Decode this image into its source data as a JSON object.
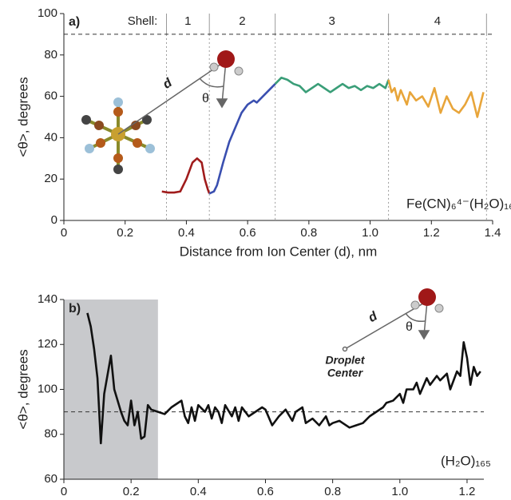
{
  "chart_data": [
    {
      "type": "line",
      "panel_label": "a)",
      "xlabel": "Distance from Ion Center (d), nm",
      "ylabel": "<θ>, degrees",
      "system_label": "Fe(CN)₆⁴⁻(H₂O)₁₆₀",
      "inset_symbols": [
        "d",
        "θ"
      ],
      "shell_label": "Shell:",
      "shells": [
        "1",
        "2",
        "3",
        "4"
      ],
      "shell_boundaries": [
        0.335,
        0.475,
        0.69,
        1.06,
        1.38
      ],
      "reference_line": 90,
      "xlim": [
        0,
        1.4
      ],
      "xticks": [
        0,
        0.2,
        0.4,
        0.6,
        0.8,
        {
          "value": 1,
          "label": "1.0"
        },
        1.2,
        1.4
      ],
      "ylim": [
        0,
        100
      ],
      "yticks": [
        0,
        20,
        40,
        60,
        80,
        100
      ],
      "series": [
        {
          "color": "#a01c1c",
          "x": [
            0.32,
            0.34,
            0.36,
            0.38,
            0.4,
            0.42,
            0.435,
            0.45,
            0.46,
            0.47,
            0.475
          ],
          "values": [
            14,
            13.5,
            13.5,
            14,
            20,
            28,
            30,
            28,
            20,
            15,
            13
          ]
        },
        {
          "color": "#3a4fb0",
          "x": [
            0.475,
            0.49,
            0.5,
            0.52,
            0.54,
            0.56,
            0.58,
            0.6,
            0.62,
            0.63,
            0.65,
            0.67,
            0.69
          ],
          "values": [
            13,
            14,
            17,
            28,
            38,
            45,
            52,
            56,
            58,
            57,
            60,
            63,
            66
          ]
        },
        {
          "color": "#3a9e78",
          "x": [
            0.69,
            0.71,
            0.73,
            0.75,
            0.77,
            0.79,
            0.81,
            0.83,
            0.85,
            0.87,
            0.89,
            0.91,
            0.93,
            0.95,
            0.97,
            0.99,
            1.01,
            1.03,
            1.05,
            1.06
          ],
          "values": [
            66,
            69,
            68,
            66,
            65,
            62,
            64,
            66,
            64,
            62,
            64,
            66,
            64,
            65,
            63,
            65,
            64,
            66,
            64,
            68
          ]
        },
        {
          "color": "#e8a53a",
          "x": [
            1.06,
            1.07,
            1.08,
            1.09,
            1.1,
            1.12,
            1.13,
            1.15,
            1.17,
            1.19,
            1.21,
            1.23,
            1.25,
            1.27,
            1.29,
            1.31,
            1.33,
            1.35,
            1.37
          ],
          "values": [
            68,
            62,
            64,
            58,
            63,
            56,
            62,
            58,
            60,
            55,
            64,
            52,
            60,
            54,
            52,
            56,
            62,
            50,
            62
          ]
        }
      ]
    },
    {
      "type": "line",
      "panel_label": "b)",
      "xlabel": "Distance from Center (d), nm",
      "ylabel": "<θ>, degrees",
      "system_label": "(H₂O)₁₆₅",
      "inset_symbols": [
        "d",
        "θ"
      ],
      "inset_label": [
        "Droplet",
        "Center"
      ],
      "reference_line": 90,
      "shaded_region": [
        0,
        0.28
      ],
      "xlim": [
        0,
        1.25
      ],
      "xticks": [
        0,
        0.2,
        0.4,
        0.6,
        0.8,
        {
          "value": 1,
          "label": "1.0"
        },
        1.2
      ],
      "ylim": [
        60,
        140
      ],
      "yticks": [
        60,
        80,
        100,
        120,
        140
      ],
      "series": [
        {
          "color": "#111111",
          "x": [
            0.07,
            0.08,
            0.09,
            0.1,
            0.11,
            0.12,
            0.14,
            0.15,
            0.17,
            0.18,
            0.19,
            0.2,
            0.21,
            0.22,
            0.23,
            0.24,
            0.25,
            0.26,
            0.28,
            0.3,
            0.32,
            0.34,
            0.35,
            0.36,
            0.37,
            0.38,
            0.39,
            0.4,
            0.42,
            0.43,
            0.44,
            0.45,
            0.46,
            0.47,
            0.48,
            0.5,
            0.51,
            0.52,
            0.53,
            0.55,
            0.57,
            0.59,
            0.6,
            0.62,
            0.64,
            0.66,
            0.68,
            0.69,
            0.71,
            0.72,
            0.74,
            0.76,
            0.78,
            0.79,
            0.8,
            0.82,
            0.83,
            0.85,
            0.87,
            0.89,
            0.91,
            0.93,
            0.95,
            0.96,
            0.98,
            1.0,
            1.01,
            1.02,
            1.04,
            1.05,
            1.06,
            1.08,
            1.09,
            1.11,
            1.12,
            1.14,
            1.15,
            1.17,
            1.18,
            1.19,
            1.2,
            1.21,
            1.22,
            1.23,
            1.24
          ],
          "values": [
            134,
            128,
            118,
            105,
            76,
            98,
            115,
            100,
            90,
            86,
            84,
            95,
            84,
            90,
            78,
            79,
            93,
            91,
            90,
            89,
            92,
            94,
            95,
            88,
            85,
            92,
            86,
            93,
            90,
            93,
            87,
            92,
            90,
            85,
            93,
            88,
            92,
            86,
            92,
            88,
            90,
            92,
            91,
            84,
            88,
            91,
            86,
            90,
            92,
            85,
            87,
            84,
            88,
            84,
            85,
            86,
            85,
            83,
            84,
            85,
            88,
            90,
            92,
            94,
            95,
            98,
            94,
            100,
            100,
            103,
            98,
            105,
            102,
            106,
            104,
            107,
            100,
            108,
            106,
            121,
            114,
            102,
            110,
            106,
            108
          ]
        }
      ]
    }
  ]
}
